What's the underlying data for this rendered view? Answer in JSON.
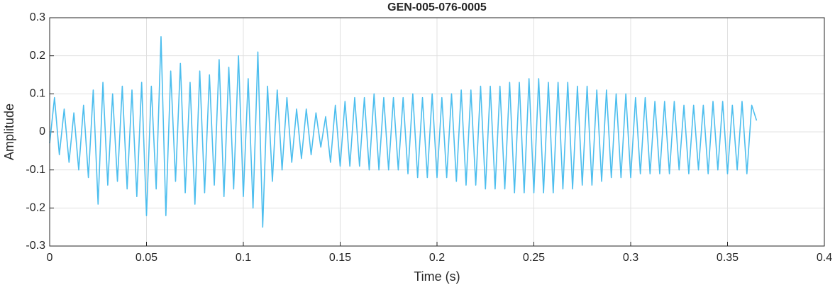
{
  "chart_data": {
    "type": "line",
    "title": "GEN-005-076-0005",
    "xlabel": "Time (s)",
    "ylabel": "Amplitude",
    "x": [
      0,
      0.0025,
      0.005,
      0.0075,
      0.01,
      0.0125,
      0.015,
      0.0175,
      0.02,
      0.0225,
      0.025,
      0.0275,
      0.03,
      0.0325,
      0.035,
      0.0375,
      0.04,
      0.0425,
      0.045,
      0.0475,
      0.05,
      0.0525,
      0.055,
      0.0575,
      0.06,
      0.0625,
      0.065,
      0.0675,
      0.07,
      0.0725,
      0.075,
      0.0775,
      0.08,
      0.0825,
      0.085,
      0.0875,
      0.09,
      0.0925,
      0.095,
      0.0975,
      0.1,
      0.1025,
      0.105,
      0.1075,
      0.11,
      0.1125,
      0.115,
      0.1175,
      0.12,
      0.1225,
      0.125,
      0.1275,
      0.13,
      0.1325,
      0.135,
      0.1375,
      0.14,
      0.1425,
      0.145,
      0.1475,
      0.15,
      0.1525,
      0.155,
      0.1575,
      0.16,
      0.1625,
      0.165,
      0.1675,
      0.17,
      0.1725,
      0.175,
      0.1775,
      0.18,
      0.1825,
      0.185,
      0.1875,
      0.19,
      0.1925,
      0.195,
      0.1975,
      0.2,
      0.2025,
      0.205,
      0.2075,
      0.21,
      0.2125,
      0.215,
      0.2175,
      0.22,
      0.2225,
      0.225,
      0.2275,
      0.23,
      0.2325,
      0.235,
      0.2375,
      0.24,
      0.2425,
      0.245,
      0.2475,
      0.25,
      0.2525,
      0.255,
      0.2575,
      0.26,
      0.2625,
      0.265,
      0.2675,
      0.27,
      0.2725,
      0.275,
      0.2775,
      0.28,
      0.2825,
      0.285,
      0.2875,
      0.29,
      0.2925,
      0.295,
      0.2975,
      0.3,
      0.3025,
      0.305,
      0.3075,
      0.31,
      0.3125,
      0.315,
      0.3175,
      0.32,
      0.3225,
      0.325,
      0.3275,
      0.33,
      0.3325,
      0.335,
      0.3375,
      0.34,
      0.3425,
      0.345,
      0.3475,
      0.35,
      0.3525,
      0.355,
      0.3575,
      0.36,
      0.3625,
      0.365
    ],
    "series": [
      {
        "color": "#4dbeee",
        "values": [
          -0.03,
          0.09,
          -0.06,
          0.06,
          -0.08,
          0.05,
          -0.1,
          0.07,
          -0.12,
          0.11,
          -0.19,
          0.13,
          -0.14,
          0.1,
          -0.13,
          0.12,
          -0.15,
          0.11,
          -0.17,
          0.13,
          -0.22,
          0.12,
          -0.15,
          0.25,
          -0.22,
          0.16,
          -0.13,
          0.18,
          -0.16,
          0.13,
          -0.19,
          0.16,
          -0.16,
          0.15,
          -0.14,
          0.19,
          -0.17,
          0.17,
          -0.15,
          0.2,
          -0.17,
          0.14,
          -0.2,
          0.21,
          -0.25,
          0.12,
          -0.13,
          0.11,
          -0.1,
          0.09,
          -0.08,
          0.06,
          -0.07,
          0.06,
          -0.06,
          0.05,
          -0.04,
          0.04,
          -0.08,
          0.07,
          -0.09,
          0.08,
          -0.09,
          0.09,
          -0.09,
          0.09,
          -0.1,
          0.1,
          -0.1,
          0.09,
          -0.1,
          0.09,
          -0.1,
          0.09,
          -0.11,
          0.1,
          -0.12,
          0.09,
          -0.12,
          0.1,
          -0.12,
          0.09,
          -0.12,
          0.1,
          -0.13,
          0.11,
          -0.14,
          0.11,
          -0.14,
          0.12,
          -0.15,
          0.12,
          -0.15,
          0.12,
          -0.15,
          0.13,
          -0.16,
          0.13,
          -0.16,
          0.14,
          -0.16,
          0.14,
          -0.16,
          0.13,
          -0.16,
          0.13,
          -0.15,
          0.13,
          -0.15,
          0.12,
          -0.14,
          0.12,
          -0.14,
          0.11,
          -0.13,
          0.11,
          -0.12,
          0.1,
          -0.12,
          0.1,
          -0.12,
          0.09,
          -0.11,
          0.09,
          -0.11,
          0.08,
          -0.11,
          0.08,
          -0.11,
          0.08,
          -0.1,
          0.07,
          -0.11,
          0.07,
          -0.1,
          0.07,
          -0.11,
          0.08,
          -0.1,
          0.08,
          -0.11,
          0.07,
          -0.1,
          0.08,
          -0.11,
          0.07,
          0.03
        ]
      }
    ],
    "xlim": [
      0,
      0.4
    ],
    "xticks": [
      0,
      0.05,
      0.1,
      0.15,
      0.2,
      0.25,
      0.3,
      0.35,
      0.4
    ],
    "ylim": [
      -0.3,
      0.3
    ],
    "yticks": [
      -0.3,
      -0.2,
      -0.1,
      0,
      0.1,
      0.2,
      0.3
    ],
    "grid": true
  }
}
